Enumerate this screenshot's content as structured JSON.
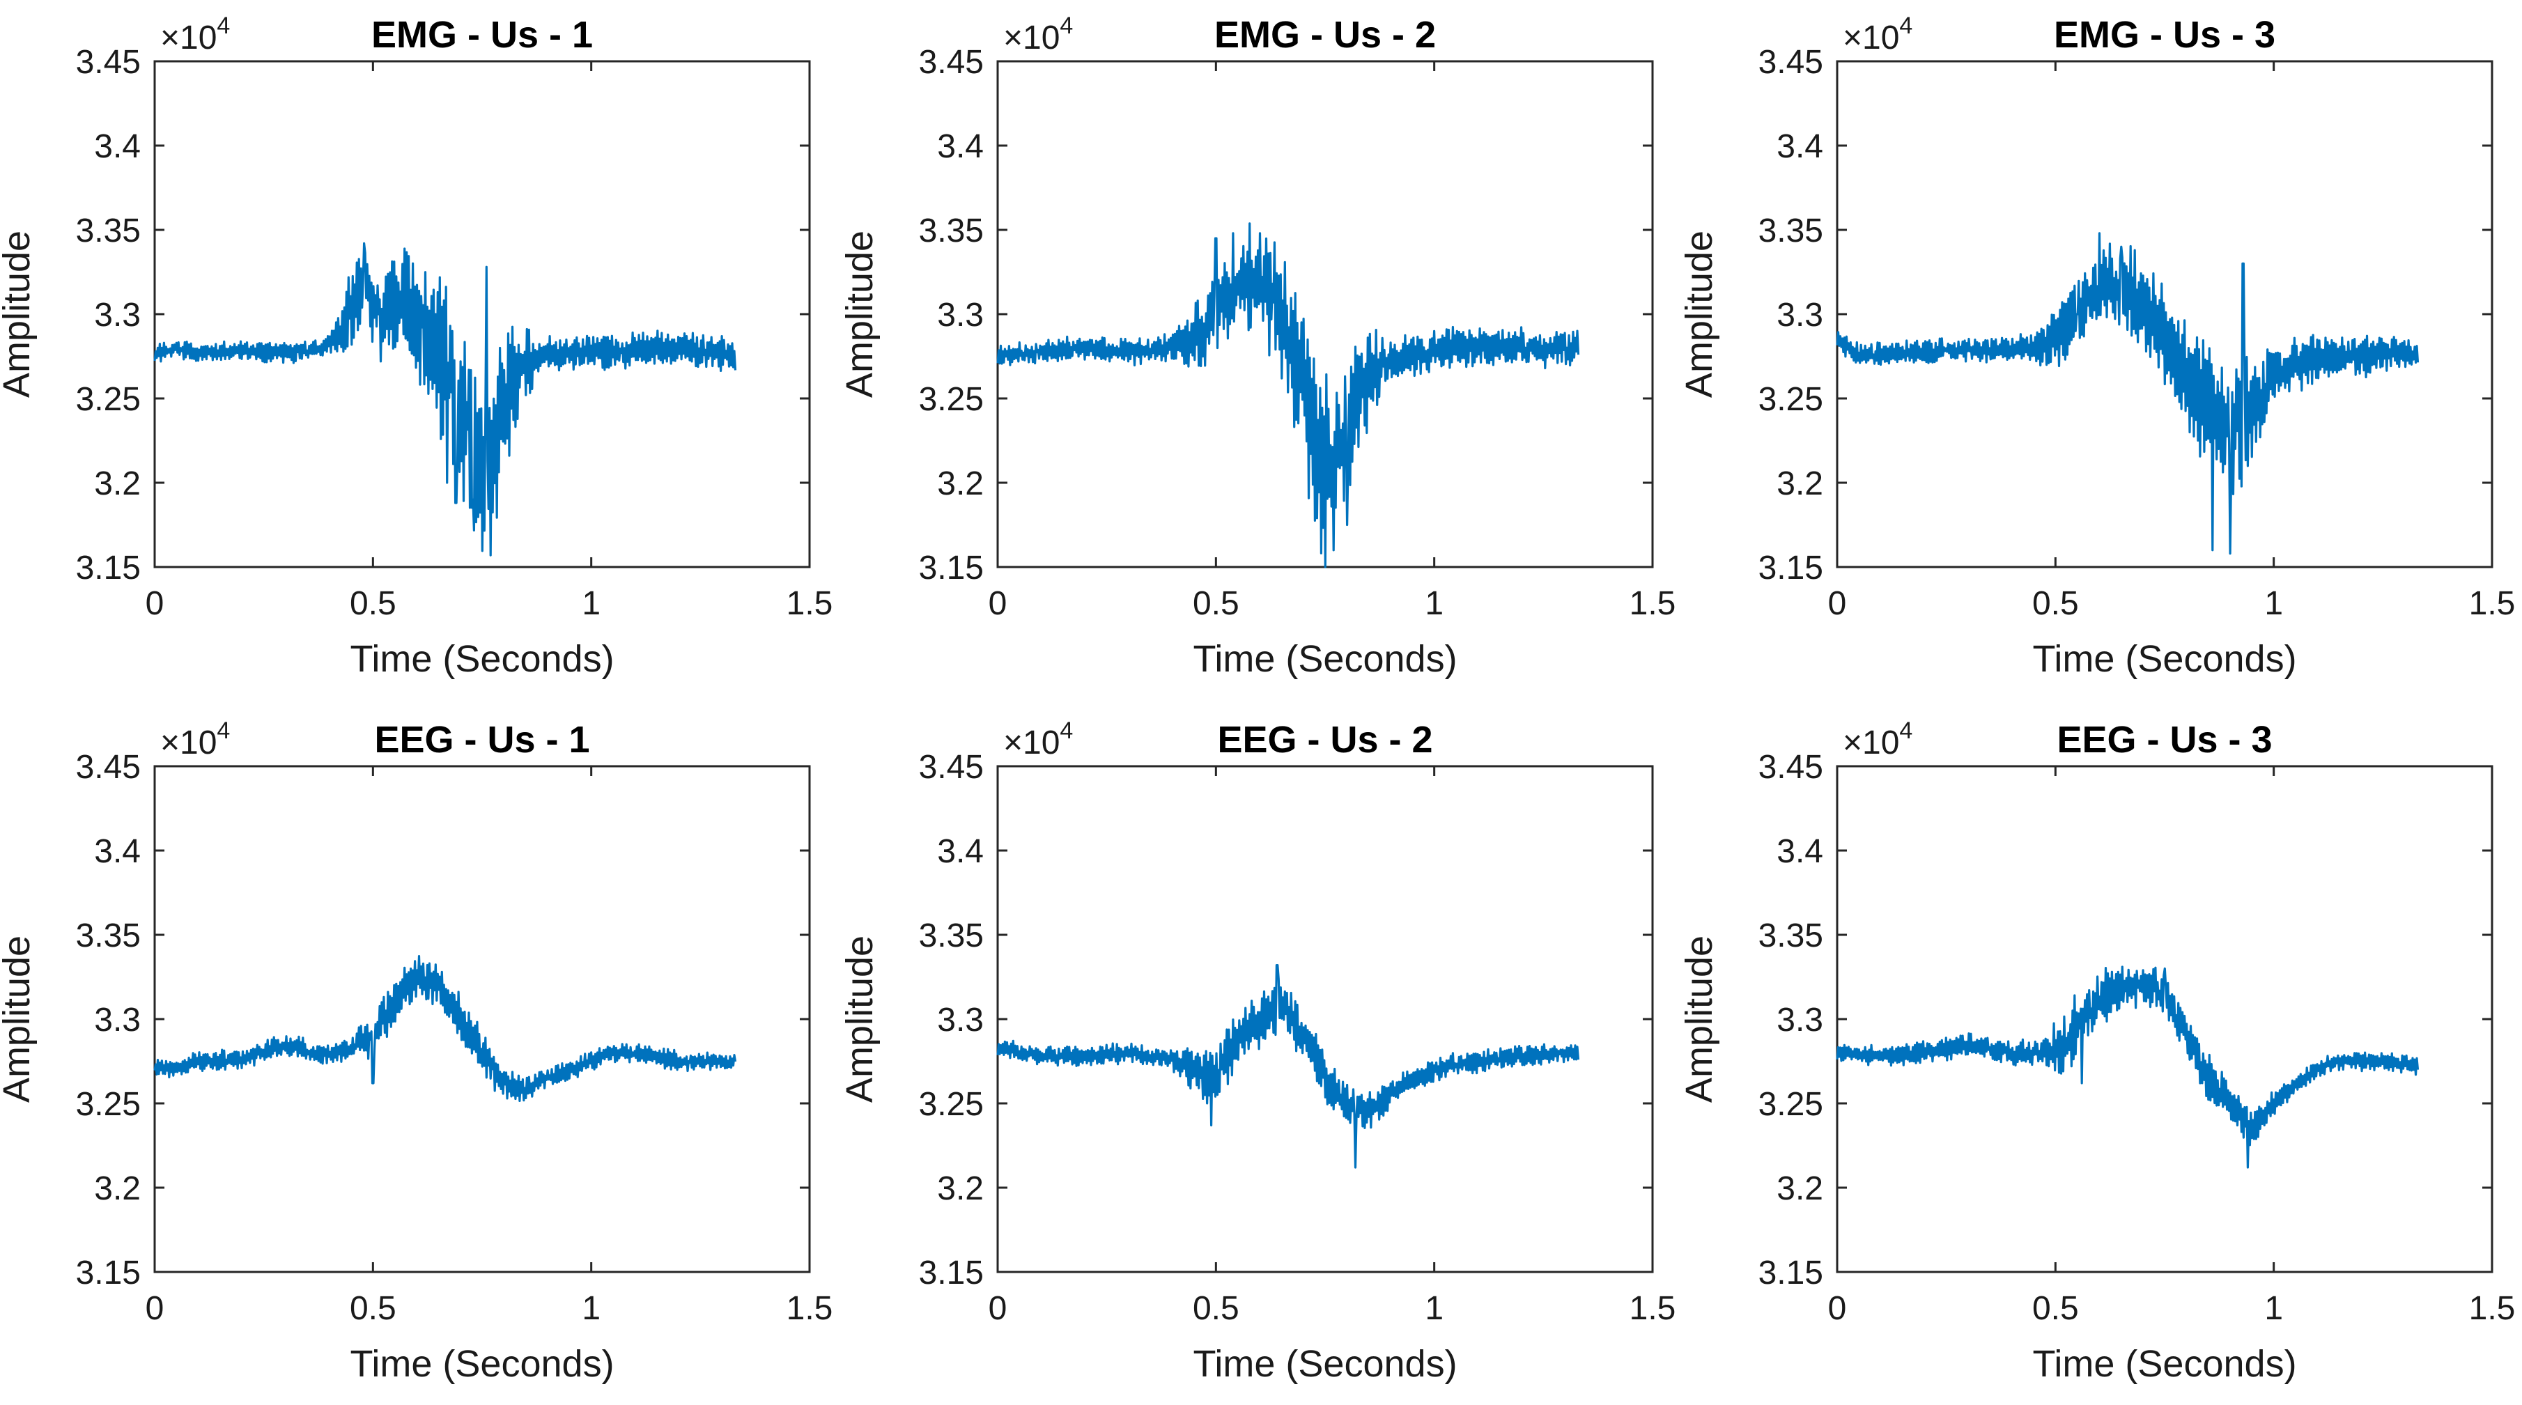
{
  "colors": {
    "line": "#0072BD",
    "axis": "#262626",
    "text": "#1a1a1a"
  },
  "chart_data": [
    {
      "type": "line",
      "title": "EMG - Us - 1",
      "signal": "EMG",
      "subject": 1,
      "xlabel": "Time (Seconds)",
      "ylabel": "Amplitude",
      "xlim": [
        0,
        1.5
      ],
      "ylim": [
        3.15,
        3.45
      ],
      "xticks": [
        "0",
        "0.5",
        "1",
        "1.5"
      ],
      "yticks": [
        "3.15",
        "3.2",
        "3.25",
        "3.3",
        "3.35",
        "3.4",
        "3.45"
      ],
      "multiplier": {
        "base": "×10",
        "exp": "4"
      },
      "x_end": 1.33,
      "series": [
        {
          "name": "EMG",
          "keypoints": [
            [
              0,
              3.276
            ],
            [
              0.05,
              3.28
            ],
            [
              0.1,
              3.277
            ],
            [
              0.2,
              3.278
            ],
            [
              0.3,
              3.277
            ],
            [
              0.38,
              3.279
            ],
            [
              0.43,
              3.29
            ],
            [
              0.48,
              3.32
            ],
            [
              0.52,
              3.3
            ],
            [
              0.57,
              3.31
            ],
            [
              0.62,
              3.29
            ],
            [
              0.67,
              3.27
            ],
            [
              0.72,
              3.23
            ],
            [
              0.76,
              3.2
            ],
            [
              0.8,
              3.25
            ],
            [
              0.85,
              3.27
            ],
            [
              0.9,
              3.277
            ],
            [
              1.0,
              3.278
            ],
            [
              1.1,
              3.279
            ],
            [
              1.2,
              3.28
            ],
            [
              1.33,
              3.275
            ]
          ],
          "noise": [
            [
              0,
              0.004
            ],
            [
              0.4,
              0.005
            ],
            [
              0.45,
              0.018
            ],
            [
              0.6,
              0.03
            ],
            [
              0.7,
              0.045
            ],
            [
              0.8,
              0.035
            ],
            [
              0.88,
              0.008
            ],
            [
              1.1,
              0.008
            ],
            [
              1.33,
              0.008
            ]
          ],
          "spikes": [
            [
              0.48,
              3.342
            ],
            [
              0.67,
              3.2
            ],
            [
              0.69,
              3.188
            ],
            [
              0.76,
              3.328
            ],
            [
              0.77,
              3.157
            ],
            [
              0.73,
              3.19
            ]
          ]
        }
      ]
    },
    {
      "type": "line",
      "title": "EMG - Us - 2",
      "signal": "EMG",
      "subject": 2,
      "xlabel": "Time (Seconds)",
      "ylabel": "Amplitude",
      "xlim": [
        0,
        1.5
      ],
      "ylim": [
        3.15,
        3.45
      ],
      "xticks": [
        "0",
        "0.5",
        "1",
        "1.5"
      ],
      "yticks": [
        "3.15",
        "3.2",
        "3.25",
        "3.3",
        "3.35",
        "3.4",
        "3.45"
      ],
      "multiplier": {
        "base": "×10",
        "exp": "4"
      },
      "x_end": 1.33,
      "series": [
        {
          "name": "EMG",
          "keypoints": [
            [
              0,
              3.275
            ],
            [
              0.1,
              3.278
            ],
            [
              0.2,
              3.28
            ],
            [
              0.3,
              3.278
            ],
            [
              0.4,
              3.28
            ],
            [
              0.47,
              3.29
            ],
            [
              0.52,
              3.31
            ],
            [
              0.57,
              3.32
            ],
            [
              0.62,
              3.315
            ],
            [
              0.66,
              3.295
            ],
            [
              0.7,
              3.26
            ],
            [
              0.74,
              3.21
            ],
            [
              0.78,
              3.22
            ],
            [
              0.82,
              3.25
            ],
            [
              0.88,
              3.27
            ],
            [
              0.95,
              3.276
            ],
            [
              1.05,
              3.28
            ],
            [
              1.15,
              3.28
            ],
            [
              1.25,
              3.279
            ],
            [
              1.33,
              3.28
            ]
          ],
          "noise": [
            [
              0,
              0.005
            ],
            [
              0.4,
              0.006
            ],
            [
              0.45,
              0.015
            ],
            [
              0.6,
              0.025
            ],
            [
              0.72,
              0.04
            ],
            [
              0.82,
              0.03
            ],
            [
              0.9,
              0.01
            ],
            [
              1.33,
              0.008
            ]
          ],
          "spikes": [
            [
              0.5,
              3.345
            ],
            [
              0.54,
              3.348
            ],
            [
              0.6,
              3.348
            ],
            [
              0.75,
              3.15
            ],
            [
              0.77,
              3.16
            ],
            [
              0.8,
              3.175
            ]
          ]
        }
      ]
    },
    {
      "type": "line",
      "title": "EMG - Us - 3",
      "signal": "EMG",
      "subject": 3,
      "xlabel": "Time (Seconds)",
      "ylabel": "Amplitude",
      "xlim": [
        0,
        1.5
      ],
      "ylim": [
        3.15,
        3.45
      ],
      "xticks": [
        "0",
        "0.5",
        "1",
        "1.5"
      ],
      "yticks": [
        "3.15",
        "3.2",
        "3.25",
        "3.3",
        "3.35",
        "3.4",
        "3.45"
      ],
      "multiplier": {
        "base": "×10",
        "exp": "4"
      },
      "x_end": 1.33,
      "series": [
        {
          "name": "EMG",
          "keypoints": [
            [
              0,
              3.285
            ],
            [
              0.05,
              3.275
            ],
            [
              0.15,
              3.277
            ],
            [
              0.3,
              3.279
            ],
            [
              0.45,
              3.28
            ],
            [
              0.52,
              3.29
            ],
            [
              0.58,
              3.31
            ],
            [
              0.63,
              3.32
            ],
            [
              0.7,
              3.305
            ],
            [
              0.75,
              3.285
            ],
            [
              0.8,
              3.265
            ],
            [
              0.85,
              3.245
            ],
            [
              0.9,
              3.23
            ],
            [
              0.95,
              3.245
            ],
            [
              1.0,
              3.262
            ],
            [
              1.05,
              3.27
            ],
            [
              1.15,
              3.275
            ],
            [
              1.25,
              3.277
            ],
            [
              1.33,
              3.276
            ]
          ],
          "noise": [
            [
              0,
              0.005
            ],
            [
              0.45,
              0.006
            ],
            [
              0.5,
              0.015
            ],
            [
              0.65,
              0.02
            ],
            [
              0.8,
              0.025
            ],
            [
              0.92,
              0.03
            ],
            [
              1.0,
              0.012
            ],
            [
              1.33,
              0.008
            ]
          ],
          "spikes": [
            [
              0.55,
              3.3
            ],
            [
              0.6,
              3.348
            ],
            [
              0.65,
              3.34
            ],
            [
              0.86,
              3.16
            ],
            [
              0.9,
              3.158
            ],
            [
              0.93,
              3.33
            ],
            [
              0.94,
              3.21
            ]
          ]
        }
      ]
    },
    {
      "type": "line",
      "title": "EEG - Us - 1",
      "signal": "EEG",
      "subject": 1,
      "xlabel": "Time (Seconds)",
      "ylabel": "Amplitude",
      "xlim": [
        0,
        1.5
      ],
      "ylim": [
        3.15,
        3.45
      ],
      "xticks": [
        "0",
        "0.5",
        "1",
        "1.5"
      ],
      "yticks": [
        "3.15",
        "3.2",
        "3.25",
        "3.3",
        "3.35",
        "3.4",
        "3.45"
      ],
      "multiplier": {
        "base": "×10",
        "exp": "4"
      },
      "x_end": 1.33,
      "series": [
        {
          "name": "EEG",
          "keypoints": [
            [
              0,
              3.272
            ],
            [
              0.05,
              3.27
            ],
            [
              0.1,
              3.275
            ],
            [
              0.2,
              3.276
            ],
            [
              0.3,
              3.285
            ],
            [
              0.38,
              3.279
            ],
            [
              0.45,
              3.282
            ],
            [
              0.5,
              3.29
            ],
            [
              0.55,
              3.31
            ],
            [
              0.6,
              3.325
            ],
            [
              0.65,
              3.32
            ],
            [
              0.7,
              3.3
            ],
            [
              0.75,
              3.28
            ],
            [
              0.8,
              3.262
            ],
            [
              0.85,
              3.258
            ],
            [
              0.9,
              3.265
            ],
            [
              0.95,
              3.27
            ],
            [
              1.0,
              3.275
            ],
            [
              1.05,
              3.28
            ],
            [
              1.1,
              3.28
            ],
            [
              1.2,
              3.275
            ],
            [
              1.33,
              3.275
            ]
          ],
          "noise": [
            [
              0,
              0.004
            ],
            [
              0.45,
              0.005
            ],
            [
              0.5,
              0.012
            ],
            [
              0.6,
              0.01
            ],
            [
              0.75,
              0.01
            ],
            [
              0.85,
              0.005
            ],
            [
              1.33,
              0.004
            ]
          ],
          "spikes": [
            [
              0.5,
              3.262
            ],
            [
              0.53,
              3.305
            ],
            [
              0.63,
              3.333
            ]
          ]
        }
      ]
    },
    {
      "type": "line",
      "title": "EEG - Us - 2",
      "signal": "EEG",
      "subject": 2,
      "xlabel": "Time (Seconds)",
      "ylabel": "Amplitude",
      "xlim": [
        0,
        1.5
      ],
      "ylim": [
        3.15,
        3.45
      ],
      "xticks": [
        "0",
        "0.5",
        "1",
        "1.5"
      ],
      "yticks": [
        "3.15",
        "3.2",
        "3.25",
        "3.3",
        "3.35",
        "3.4",
        "3.45"
      ],
      "multiplier": {
        "base": "×10",
        "exp": "4"
      },
      "x_end": 1.33,
      "series": [
        {
          "name": "EEG",
          "keypoints": [
            [
              0,
              3.283
            ],
            [
              0.1,
              3.278
            ],
            [
              0.2,
              3.278
            ],
            [
              0.3,
              3.28
            ],
            [
              0.4,
              3.276
            ],
            [
              0.45,
              3.27
            ],
            [
              0.5,
              3.265
            ],
            [
              0.55,
              3.29
            ],
            [
              0.6,
              3.3
            ],
            [
              0.65,
              3.31
            ],
            [
              0.7,
              3.29
            ],
            [
              0.75,
              3.265
            ],
            [
              0.8,
              3.25
            ],
            [
              0.85,
              3.245
            ],
            [
              0.9,
              3.255
            ],
            [
              0.95,
              3.265
            ],
            [
              1.0,
              3.27
            ],
            [
              1.1,
              3.275
            ],
            [
              1.2,
              3.278
            ],
            [
              1.33,
              3.28
            ]
          ],
          "noise": [
            [
              0,
              0.004
            ],
            [
              0.4,
              0.005
            ],
            [
              0.47,
              0.012
            ],
            [
              0.62,
              0.012
            ],
            [
              0.8,
              0.01
            ],
            [
              0.9,
              0.006
            ],
            [
              1.33,
              0.004
            ]
          ],
          "spikes": [
            [
              0.49,
              3.237
            ],
            [
              0.64,
              3.332
            ],
            [
              0.82,
              3.212
            ]
          ]
        }
      ]
    },
    {
      "type": "line",
      "title": "EEG - Us - 3",
      "signal": "EEG",
      "subject": 3,
      "xlabel": "Time (Seconds)",
      "ylabel": "Amplitude",
      "xlim": [
        0,
        1.5
      ],
      "ylim": [
        3.15,
        3.45
      ],
      "xticks": [
        "0",
        "0.5",
        "1",
        "1.5"
      ],
      "yticks": [
        "3.15",
        "3.2",
        "3.25",
        "3.3",
        "3.35",
        "3.4",
        "3.45"
      ],
      "multiplier": {
        "base": "×10",
        "exp": "4"
      },
      "x_end": 1.33,
      "series": [
        {
          "name": "EEG",
          "keypoints": [
            [
              0,
              3.28
            ],
            [
              0.1,
              3.278
            ],
            [
              0.2,
              3.28
            ],
            [
              0.3,
              3.285
            ],
            [
              0.4,
              3.28
            ],
            [
              0.5,
              3.28
            ],
            [
              0.55,
              3.295
            ],
            [
              0.6,
              3.31
            ],
            [
              0.65,
              3.32
            ],
            [
              0.7,
              3.32
            ],
            [
              0.75,
              3.315
            ],
            [
              0.8,
              3.29
            ],
            [
              0.85,
              3.265
            ],
            [
              0.9,
              3.25
            ],
            [
              0.95,
              3.235
            ],
            [
              1.0,
              3.25
            ],
            [
              1.05,
              3.26
            ],
            [
              1.1,
              3.27
            ],
            [
              1.15,
              3.275
            ],
            [
              1.25,
              3.275
            ],
            [
              1.33,
              3.272
            ]
          ],
          "noise": [
            [
              0,
              0.004
            ],
            [
              0.45,
              0.006
            ],
            [
              0.52,
              0.015
            ],
            [
              0.7,
              0.01
            ],
            [
              0.85,
              0.01
            ],
            [
              0.95,
              0.008
            ],
            [
              1.05,
              0.004
            ],
            [
              1.33,
              0.004
            ]
          ],
          "spikes": [
            [
              0.56,
              3.262
            ],
            [
              0.63,
              3.328
            ],
            [
              0.75,
              3.33
            ],
            [
              0.94,
              3.212
            ]
          ]
        }
      ]
    }
  ]
}
